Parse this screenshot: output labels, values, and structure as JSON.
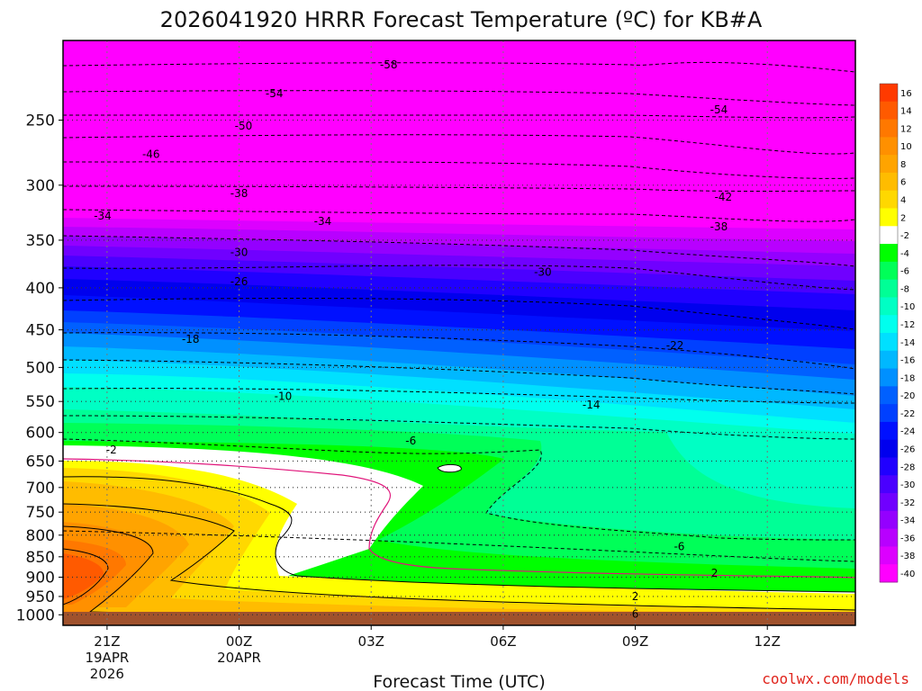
{
  "chart_data": {
    "type": "contour",
    "title": "2026041920 HRRR Forecast Temperature (ºC) for KB#A",
    "xlabel": "Forecast Time (UTC)",
    "x_ticks": [
      {
        "label": "21Z",
        "sub1": "19APR",
        "sub2": "2026",
        "hour": 1
      },
      {
        "label": "00Z",
        "sub1": "20APR",
        "sub2": "",
        "hour": 4
      },
      {
        "label": "03Z",
        "sub1": "",
        "sub2": "",
        "hour": 7
      },
      {
        "label": "06Z",
        "sub1": "",
        "sub2": "",
        "hour": 10
      },
      {
        "label": "09Z",
        "sub1": "",
        "sub2": "",
        "hour": 13
      },
      {
        "label": "12Z",
        "sub1": "",
        "sub2": "",
        "hour": 16
      }
    ],
    "y_ticks": [
      250,
      300,
      350,
      400,
      450,
      500,
      550,
      600,
      650,
      700,
      750,
      800,
      850,
      900,
      950,
      1000
    ],
    "y_axis": {
      "scale": "log",
      "top_hPa": 200,
      "bottom_hPa": 1030
    },
    "x_range_hours": [
      0,
      18
    ],
    "colorbar_ticks": [
      16,
      14,
      12,
      10,
      8,
      6,
      4,
      2,
      -2,
      -4,
      -6,
      -8,
      -10,
      -12,
      -14,
      -16,
      -18,
      -20,
      -22,
      -24,
      -26,
      -28,
      -30,
      -32,
      -34,
      -36,
      -38,
      -40
    ],
    "colorbar_colors": [
      "#ff3a00",
      "#ff5a00",
      "#ff7800",
      "#ff9000",
      "#ffa400",
      "#ffbc00",
      "#ffd800",
      "#ffff00",
      "#ffffff",
      "#00ff00",
      "#00ff58",
      "#00ff96",
      "#00ffc4",
      "#00ffee",
      "#00e0ff",
      "#00b8ff",
      "#0090ff",
      "#0060ff",
      "#0040ff",
      "#0010ff",
      "#0000ee",
      "#2000ff",
      "#4a00ff",
      "#7000ff",
      "#9400ff",
      "#b800ff",
      "#dc00ff",
      "#ff00ff"
    ],
    "ground_color": "#a0522d",
    "contour_labels": [
      {
        "text": "-58",
        "hour": 7.4,
        "hPa": 214
      },
      {
        "text": "-54",
        "hour": 4.8,
        "hPa": 232
      },
      {
        "text": "-54",
        "hour": 14.9,
        "hPa": 243
      },
      {
        "text": "-50",
        "hour": 4.1,
        "hPa": 254
      },
      {
        "text": "-46",
        "hour": 2.0,
        "hPa": 275
      },
      {
        "text": "-38",
        "hour": 4.0,
        "hPa": 307
      },
      {
        "text": "-42",
        "hour": 15.0,
        "hPa": 310
      },
      {
        "text": "-34",
        "hour": 0.9,
        "hPa": 327
      },
      {
        "text": "-34",
        "hour": 5.9,
        "hPa": 332
      },
      {
        "text": "-38",
        "hour": 14.9,
        "hPa": 337
      },
      {
        "text": "-30",
        "hour": 4.0,
        "hPa": 362
      },
      {
        "text": "-30",
        "hour": 10.9,
        "hPa": 383
      },
      {
        "text": "-26",
        "hour": 4.0,
        "hPa": 393
      },
      {
        "text": "-18",
        "hour": 2.9,
        "hPa": 462
      },
      {
        "text": "-22",
        "hour": 13.9,
        "hPa": 470
      },
      {
        "text": "-10",
        "hour": 5.0,
        "hPa": 542
      },
      {
        "text": "-14",
        "hour": 12.0,
        "hPa": 555
      },
      {
        "text": "-6",
        "hour": 7.9,
        "hPa": 614
      },
      {
        "text": "-2",
        "hour": 1.1,
        "hPa": 630
      },
      {
        "text": "-6",
        "hour": 14.0,
        "hPa": 826
      },
      {
        "text": "2",
        "hour": 14.8,
        "hPa": 890
      },
      {
        "text": "2",
        "hour": 13.0,
        "hPa": 950
      },
      {
        "text": "6",
        "hour": 13.0,
        "hPa": 998
      }
    ]
  },
  "credit": "coolwx.com/models"
}
